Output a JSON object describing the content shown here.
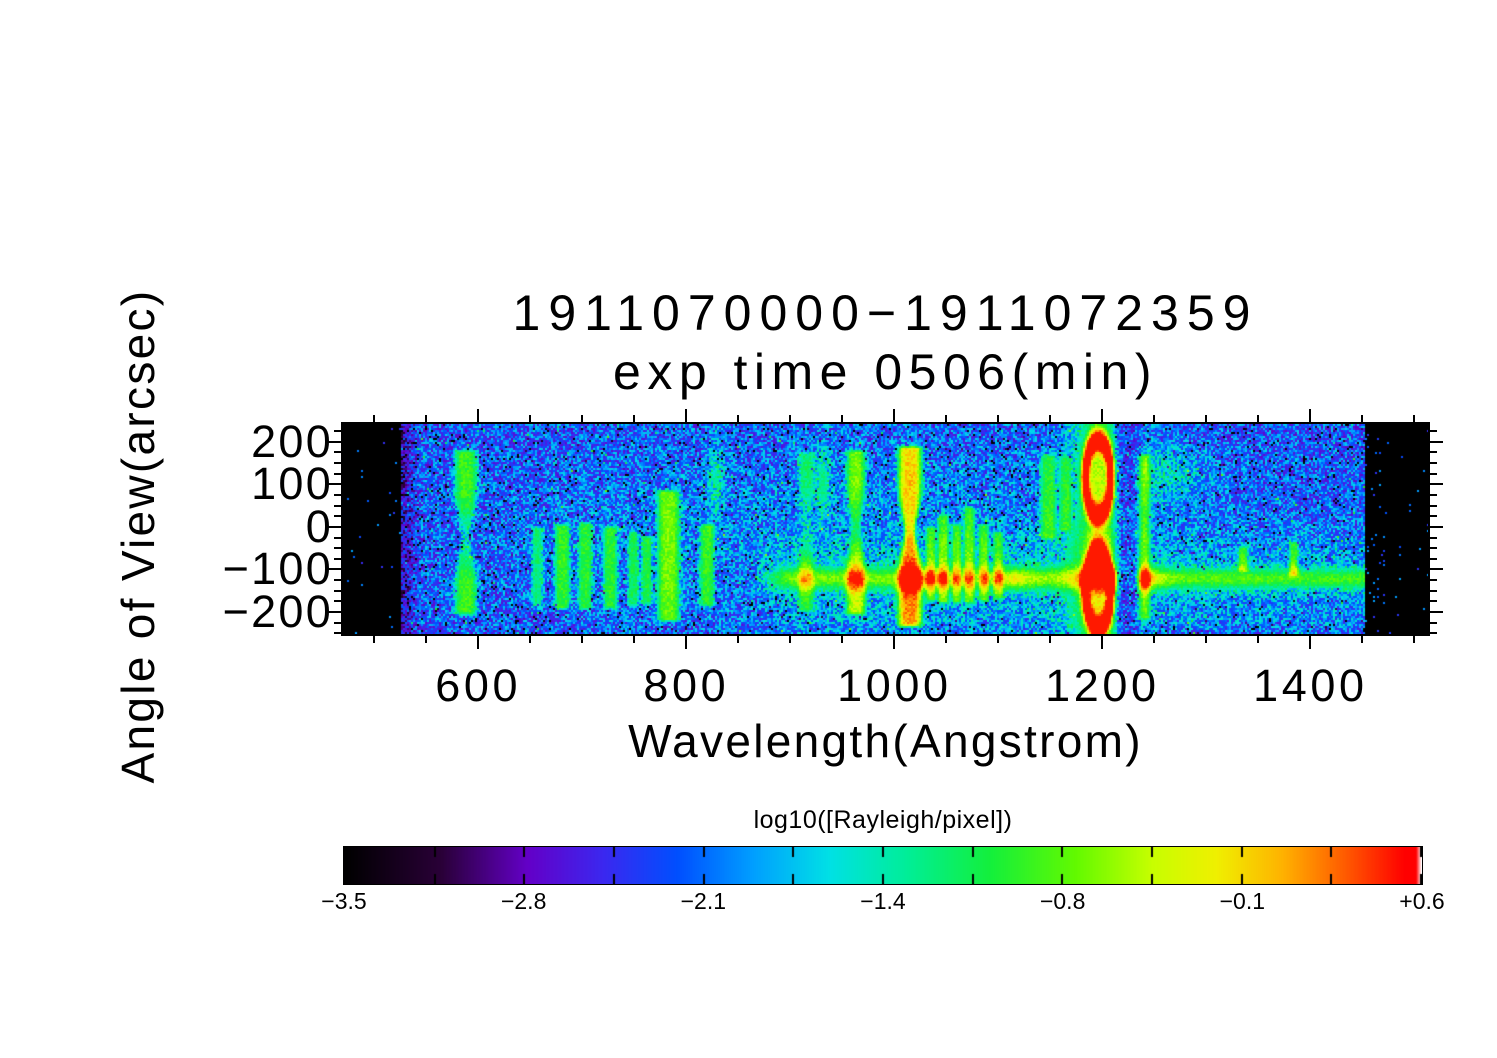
{
  "chart_data": {
    "type": "heatmap",
    "title": "1911070000−1911072359",
    "subtitle": "exp time 0506(min)",
    "xlabel": "Wavelength(Angstrom)",
    "ylabel": "Angle of View(arcsec)",
    "x_ticks": [
      600,
      800,
      1000,
      1200,
      1400
    ],
    "x_tick_labels": [
      "600",
      "800",
      "1000",
      "1200",
      "1400"
    ],
    "x_minor_step": 50,
    "xlim": [
      470,
      1513
    ],
    "y_ticks": [
      200,
      100,
      0,
      -100,
      -200
    ],
    "y_tick_labels": [
      "200",
      "100",
      "0",
      "−100",
      "−200"
    ],
    "y_minor_step": 25,
    "ylim": [
      -252,
      242
    ],
    "data_xlim": [
      525,
      1452
    ],
    "colorbar": {
      "title": "log10([Rayleigh/pixel])",
      "min": -3.5,
      "max": 0.6,
      "tick_labels": [
        "−3.5",
        "−2.8",
        "−2.1",
        "−1.4",
        "−0.8",
        "−0.1",
        "+0.6"
      ],
      "colormap_stops": [
        [
          0.0,
          "#000000"
        ],
        [
          0.09,
          "#2a0038"
        ],
        [
          0.17,
          "#6400c8"
        ],
        [
          0.24,
          "#3c28f0"
        ],
        [
          0.31,
          "#0050ff"
        ],
        [
          0.38,
          "#00a0ff"
        ],
        [
          0.45,
          "#00e1e6"
        ],
        [
          0.52,
          "#00ee9b"
        ],
        [
          0.6,
          "#14f03c"
        ],
        [
          0.68,
          "#64fa00"
        ],
        [
          0.75,
          "#c8ff00"
        ],
        [
          0.81,
          "#f0f000"
        ],
        [
          0.87,
          "#ffb400"
        ],
        [
          0.93,
          "#ff5a00"
        ],
        [
          0.985,
          "#ff0000"
        ],
        [
          0.995,
          "#ff0000"
        ],
        [
          1.0,
          "#ffffff"
        ]
      ]
    },
    "background": {
      "base": 0.295,
      "boost": 0.075,
      "boost_center_A": 1000,
      "boost_sigma_A": 280,
      "boost_center_arcsec": -40,
      "boost_sigma_arcsec": 175,
      "speck_probability": 0.05
    },
    "airglow_band": {
      "center_arcsec": -122,
      "sigma_arcsec": 20,
      "onset_A": 855,
      "intensity": 0.3,
      "hotspots_A": [
        1030,
        1115,
        1200,
        1245
      ],
      "hotspot_intensity": 0.11,
      "lower_wash": {
        "center_arcsec": -195,
        "sigma_arcsec": 45,
        "intensity": 0.055
      },
      "upper_wash": {
        "center_arcsec": -60,
        "sigma_arcsec": 38,
        "intensity": 0.05
      }
    },
    "emission_lines": [
      {
        "wavelength_A": 588,
        "top": 186,
        "bottom": -212,
        "width_A": 19,
        "intensity": 0.33,
        "waist": {
          "center": -25,
          "sigma": 45,
          "depth": 0.55,
          "narrow": 0.55
        }
      },
      {
        "wavelength_A": 657,
        "top": 7,
        "bottom": -193,
        "width_A": 10,
        "intensity": 0.22
      },
      {
        "wavelength_A": 681,
        "top": 12,
        "bottom": -200,
        "width_A": 13,
        "intensity": 0.3
      },
      {
        "wavelength_A": 703,
        "top": 16,
        "bottom": -200,
        "width_A": 12,
        "intensity": 0.28
      },
      {
        "wavelength_A": 727,
        "top": 7,
        "bottom": -200,
        "width_A": 12,
        "intensity": 0.28
      },
      {
        "wavelength_A": 749,
        "top": -5,
        "bottom": -193,
        "width_A": 9,
        "intensity": 0.24
      },
      {
        "wavelength_A": 762,
        "top": -16,
        "bottom": -188,
        "width_A": 9,
        "intensity": 0.26
      },
      {
        "wavelength_A": 783,
        "top": 92,
        "bottom": -228,
        "width_A": 19,
        "intensity": 0.34
      },
      {
        "wavelength_A": 820,
        "top": 12,
        "bottom": -193,
        "width_A": 12,
        "intensity": 0.28
      },
      {
        "wavelength_A": 915,
        "top": 181,
        "bottom": -205,
        "width_A": 13,
        "intensity": 0.22,
        "waist": {
          "center": 0,
          "sigma": 50,
          "depth": 0.75,
          "narrow": 0.3
        }
      },
      {
        "wavelength_A": 963,
        "top": 186,
        "bottom": -212,
        "width_A": 16,
        "intensity": 0.35,
        "waist": {
          "center": -8,
          "sigma": 45,
          "depth": 0.45,
          "narrow": 0.5
        }
      },
      {
        "wavelength_A": 1015,
        "top": 195,
        "bottom": -240,
        "width_A": 20,
        "intensity": 0.5,
        "waist": {
          "center": -12,
          "sigma": 42,
          "depth": 0.12,
          "narrow": 0.55
        }
      },
      {
        "wavelength_A": 1035,
        "top": 7,
        "bottom": -181,
        "width_A": 8,
        "intensity": 0.25
      },
      {
        "wavelength_A": 1047,
        "top": 35,
        "bottom": -185,
        "width_A": 9,
        "intensity": 0.27
      },
      {
        "wavelength_A": 1060,
        "top": 12,
        "bottom": -185,
        "width_A": 8,
        "intensity": 0.25
      },
      {
        "wavelength_A": 1072,
        "top": 54,
        "bottom": -185,
        "width_A": 9,
        "intensity": 0.27
      },
      {
        "wavelength_A": 1086,
        "top": 12,
        "bottom": -181,
        "width_A": 8,
        "intensity": 0.25
      },
      {
        "wavelength_A": 1100,
        "top": -5,
        "bottom": -176,
        "width_A": 8,
        "intensity": 0.23
      },
      {
        "wavelength_A": 1148,
        "top": 176,
        "bottom": -35,
        "width_A": 13,
        "intensity": 0.25
      },
      {
        "wavelength_A": 1164,
        "top": 172,
        "bottom": -16,
        "width_A": 10,
        "intensity": 0.18
      },
      {
        "wavelength_A": 1239,
        "top": 176,
        "bottom": -224,
        "width_A": 12,
        "intensity": 0.27
      },
      {
        "wavelength_A": 1335,
        "top": -40,
        "bottom": -111,
        "width_A": 8,
        "intensity": 0.25
      },
      {
        "wavelength_A": 1384,
        "top": -28,
        "bottom": -122,
        "width_A": 7,
        "intensity": 0.25
      }
    ],
    "patches": [
      {
        "wavelength_A": 828,
        "arcsec": 115,
        "sigma_A": 6,
        "sigma_arcsec": 60,
        "intensity": 0.17
      },
      {
        "wavelength_A": 931,
        "arcsec": 110,
        "sigma_A": 6,
        "sigma_arcsec": 58,
        "intensity": 0.2
      },
      {
        "wavelength_A": 1263,
        "arcsec": 127,
        "sigma_A": 24,
        "sigma_arcsec": 48,
        "intensity": 0.14
      },
      {
        "wavelength_A": 1239,
        "arcsec": -125,
        "sigma_A": 7,
        "sigma_arcsec": 16,
        "intensity": 0.14
      },
      {
        "wavelength_A": 1196,
        "arcsec": -30,
        "sigma_A": 9,
        "sigma_arcsec": 14,
        "intensity": 0.12
      }
    ],
    "lyman_alpha_rings": {
      "wavelength_A": 1196,
      "rx_A": 12.5,
      "ry_arcsec": 89,
      "upper_center_arcsec": 115,
      "lower_center_arcsec": -148,
      "ring_intensity": 0.62,
      "ring_sharpness": 0.22,
      "core_intensity": 0.18,
      "halo_intensity": 0.24,
      "halo_sigma_A": 22
    },
    "dark_gap": {
      "from_A": 1213,
      "to_A": 1236
    }
  }
}
